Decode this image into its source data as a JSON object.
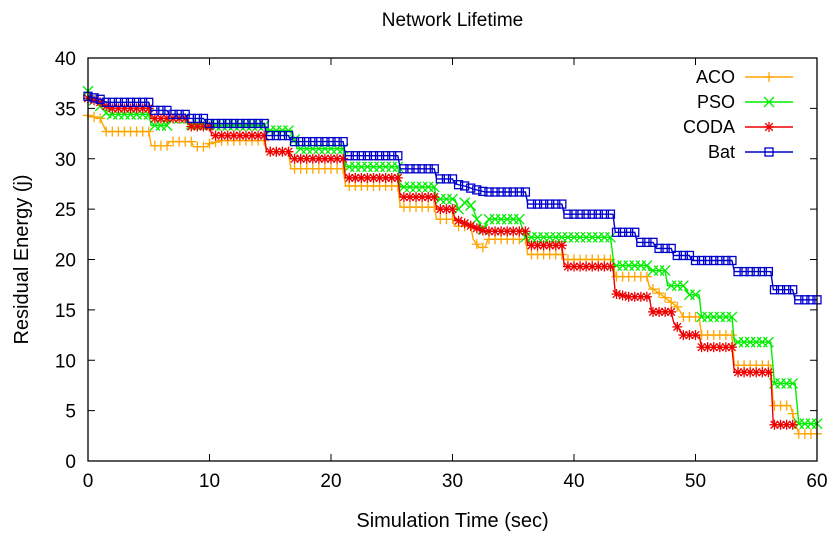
{
  "chart_data": {
    "type": "line",
    "title": "Network Lifetime",
    "xlabel": "Simulation Time (sec)",
    "ylabel": "Residual Energy (j)",
    "xlim": [
      0,
      60
    ],
    "ylim": [
      0,
      40
    ],
    "xticks": [
      0,
      10,
      20,
      30,
      40,
      50,
      60
    ],
    "yticks": [
      0,
      5,
      10,
      15,
      20,
      25,
      30,
      35,
      40
    ],
    "grid": false,
    "legend_position": "top-right",
    "series": [
      {
        "name": "ACO",
        "color": "#ffa500",
        "marker": "plus",
        "points": [
          [
            0,
            34.3
          ],
          [
            1,
            34.0
          ],
          [
            1.5,
            32.7
          ],
          [
            5,
            32.7
          ],
          [
            5.2,
            31.3
          ],
          [
            6.5,
            31.3
          ],
          [
            6.7,
            31.7
          ],
          [
            8.5,
            31.7
          ],
          [
            8.7,
            31.2
          ],
          [
            9.8,
            31.2
          ],
          [
            10,
            31.5
          ],
          [
            11,
            31.8
          ],
          [
            14.5,
            31.8
          ],
          [
            14.7,
            30.7
          ],
          [
            16.5,
            30.7
          ],
          [
            16.7,
            29.0
          ],
          [
            21,
            29.0
          ],
          [
            21.2,
            27.3
          ],
          [
            25.5,
            27.3
          ],
          [
            25.7,
            25.2
          ],
          [
            28.5,
            25.2
          ],
          [
            28.7,
            24.0
          ],
          [
            30,
            24.0
          ],
          [
            30.2,
            23.3
          ],
          [
            31.5,
            23.3
          ],
          [
            31.7,
            22.0
          ],
          [
            32.2,
            21.2
          ],
          [
            32.7,
            21.2
          ],
          [
            32.9,
            22.0
          ],
          [
            36,
            22.0
          ],
          [
            36.2,
            20.5
          ],
          [
            39,
            20.5
          ],
          [
            39.2,
            20.0
          ],
          [
            43.2,
            20.0
          ],
          [
            43.4,
            18.3
          ],
          [
            46,
            18.3
          ],
          [
            46.2,
            17.3
          ],
          [
            47.2,
            16.5
          ],
          [
            48.5,
            15.3
          ],
          [
            49,
            14.3
          ],
          [
            50.3,
            14.3
          ],
          [
            50.5,
            12.5
          ],
          [
            53,
            12.5
          ],
          [
            53.2,
            9.5
          ],
          [
            56.2,
            9.5
          ],
          [
            56.4,
            5.5
          ],
          [
            57.8,
            5.5
          ],
          [
            58.5,
            2.7
          ],
          [
            60,
            2.7
          ]
        ]
      },
      {
        "name": "PSO",
        "color": "#00ee00",
        "marker": "cross",
        "points": [
          [
            0,
            36.7
          ],
          [
            0.5,
            35.8
          ],
          [
            1.2,
            35.0
          ],
          [
            1.6,
            34.4
          ],
          [
            5,
            34.4
          ],
          [
            5.2,
            33.3
          ],
          [
            6.5,
            33.3
          ],
          [
            6.7,
            34.0
          ],
          [
            8,
            34.0
          ],
          [
            8.2,
            33.4
          ],
          [
            10,
            33.4
          ],
          [
            10.2,
            33.3
          ],
          [
            14.5,
            33.3
          ],
          [
            14.7,
            32.8
          ],
          [
            16.8,
            32.8
          ],
          [
            17.2,
            31.0
          ],
          [
            21,
            31.0
          ],
          [
            21.2,
            29.2
          ],
          [
            25.5,
            29.2
          ],
          [
            25.7,
            27.2
          ],
          [
            28.5,
            27.2
          ],
          [
            28.7,
            26.0
          ],
          [
            30.2,
            26.0
          ],
          [
            30.5,
            25.0
          ],
          [
            31.2,
            25.9
          ],
          [
            31.7,
            25.0
          ],
          [
            32,
            24.0
          ],
          [
            32.5,
            23.0
          ],
          [
            33,
            24.0
          ],
          [
            35.5,
            24.0
          ],
          [
            36,
            22.2
          ],
          [
            43,
            22.2
          ],
          [
            43.3,
            19.4
          ],
          [
            46,
            19.4
          ],
          [
            46.2,
            18.9
          ],
          [
            47.5,
            18.9
          ],
          [
            47.7,
            17.4
          ],
          [
            49,
            17.4
          ],
          [
            49.5,
            16.5
          ],
          [
            50.3,
            16.5
          ],
          [
            50.5,
            14.3
          ],
          [
            53,
            14.3
          ],
          [
            53.2,
            11.8
          ],
          [
            56.2,
            11.8
          ],
          [
            56.5,
            7.7
          ],
          [
            58.2,
            7.7
          ],
          [
            58.5,
            3.7
          ],
          [
            60,
            3.7
          ]
        ]
      },
      {
        "name": "CODA",
        "color": "#ee0000",
        "marker": "asterisk",
        "points": [
          [
            0,
            36.0
          ],
          [
            1,
            35.6
          ],
          [
            1.8,
            35.0
          ],
          [
            5,
            35.0
          ],
          [
            5.2,
            34.0
          ],
          [
            8.2,
            34.0
          ],
          [
            8.4,
            33.2
          ],
          [
            10,
            33.2
          ],
          [
            10.2,
            32.3
          ],
          [
            14.5,
            32.3
          ],
          [
            14.7,
            30.7
          ],
          [
            16.5,
            30.7
          ],
          [
            16.7,
            30.0
          ],
          [
            21,
            30.0
          ],
          [
            21.2,
            28.1
          ],
          [
            25.5,
            28.1
          ],
          [
            25.7,
            26.2
          ],
          [
            28.5,
            26.2
          ],
          [
            28.7,
            25.0
          ],
          [
            30,
            25.0
          ],
          [
            30.2,
            24.0
          ],
          [
            31.2,
            23.5
          ],
          [
            32.2,
            23.0
          ],
          [
            32.7,
            22.8
          ],
          [
            36,
            22.8
          ],
          [
            36.2,
            21.4
          ],
          [
            39,
            21.4
          ],
          [
            39.2,
            19.3
          ],
          [
            43.2,
            19.3
          ],
          [
            43.4,
            16.6
          ],
          [
            44.5,
            16.3
          ],
          [
            46.2,
            16.3
          ],
          [
            46.4,
            14.8
          ],
          [
            48,
            14.8
          ],
          [
            48.2,
            13.8
          ],
          [
            49,
            12.5
          ],
          [
            50.3,
            12.5
          ],
          [
            50.5,
            11.3
          ],
          [
            53,
            11.3
          ],
          [
            53.2,
            8.8
          ],
          [
            56.2,
            8.8
          ],
          [
            56.4,
            3.6
          ],
          [
            58,
            3.6
          ]
        ]
      },
      {
        "name": "Bat",
        "color": "#0000cc",
        "marker": "square",
        "points": [
          [
            0,
            36.2
          ],
          [
            1,
            35.9
          ],
          [
            1.5,
            35.6
          ],
          [
            5,
            35.6
          ],
          [
            5.2,
            34.8
          ],
          [
            6.5,
            34.8
          ],
          [
            6.7,
            34.4
          ],
          [
            8,
            34.4
          ],
          [
            8.2,
            34.0
          ],
          [
            9.5,
            34.0
          ],
          [
            9.8,
            33.5
          ],
          [
            14.5,
            33.5
          ],
          [
            14.7,
            32.3
          ],
          [
            16.5,
            32.3
          ],
          [
            16.7,
            31.7
          ],
          [
            21,
            31.7
          ],
          [
            21.2,
            30.3
          ],
          [
            25.5,
            30.3
          ],
          [
            25.7,
            29.0
          ],
          [
            28.5,
            29.0
          ],
          [
            28.7,
            28.0
          ],
          [
            30,
            28.0
          ],
          [
            30.2,
            27.5
          ],
          [
            31,
            27.3
          ],
          [
            31.7,
            27.0
          ],
          [
            32.7,
            26.7
          ],
          [
            36,
            26.7
          ],
          [
            36.2,
            25.5
          ],
          [
            39,
            25.5
          ],
          [
            39.2,
            24.5
          ],
          [
            43.2,
            24.5
          ],
          [
            43.4,
            22.7
          ],
          [
            45,
            22.7
          ],
          [
            45.2,
            21.7
          ],
          [
            46.5,
            21.7
          ],
          [
            46.8,
            21.1
          ],
          [
            48,
            21.1
          ],
          [
            48.2,
            20.4
          ],
          [
            49.5,
            20.4
          ],
          [
            49.7,
            19.9
          ],
          [
            50.5,
            19.9
          ],
          [
            50.7,
            19.9
          ],
          [
            53,
            19.9
          ],
          [
            53.2,
            18.8
          ],
          [
            56.2,
            18.8
          ],
          [
            56.4,
            17.0
          ],
          [
            58,
            17.0
          ],
          [
            58.2,
            16.0
          ],
          [
            60,
            16.0
          ]
        ]
      }
    ]
  }
}
